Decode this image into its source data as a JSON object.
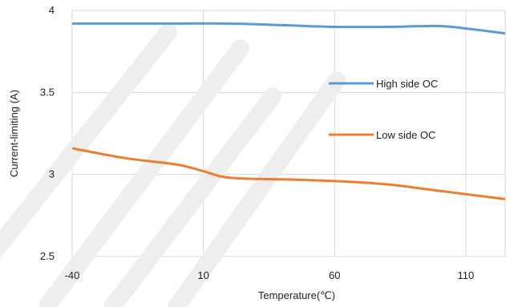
{
  "chart_data": {
    "type": "line",
    "xlabel": "Temperature(℃)",
    "ylabel": "Current-limiting (A)",
    "xlim": [
      -40,
      125
    ],
    "ylim": [
      2.5,
      4
    ],
    "xticks": [
      -40,
      10,
      60,
      110
    ],
    "yticks": [
      2.5,
      3,
      3.5,
      4
    ],
    "ytick_labels": [
      "2.5",
      "3",
      "3.5",
      "4"
    ],
    "grid": true,
    "legend_position": "right, inside plot",
    "series": [
      {
        "name": "High side OC",
        "color": "#5b9bd5",
        "x": [
          -40,
          -20,
          0,
          20,
          40,
          60,
          80,
          100,
          110,
          125
        ],
        "y": [
          3.92,
          3.92,
          3.92,
          3.92,
          3.91,
          3.9,
          3.9,
          3.905,
          3.89,
          3.86
        ]
      },
      {
        "name": "Low side OC",
        "color": "#ed7d31",
        "x": [
          -40,
          -20,
          0,
          10,
          20,
          40,
          60,
          80,
          100,
          125
        ],
        "y": [
          3.16,
          3.1,
          3.06,
          3.02,
          2.98,
          2.97,
          2.96,
          2.94,
          2.9,
          2.85
        ]
      }
    ]
  }
}
